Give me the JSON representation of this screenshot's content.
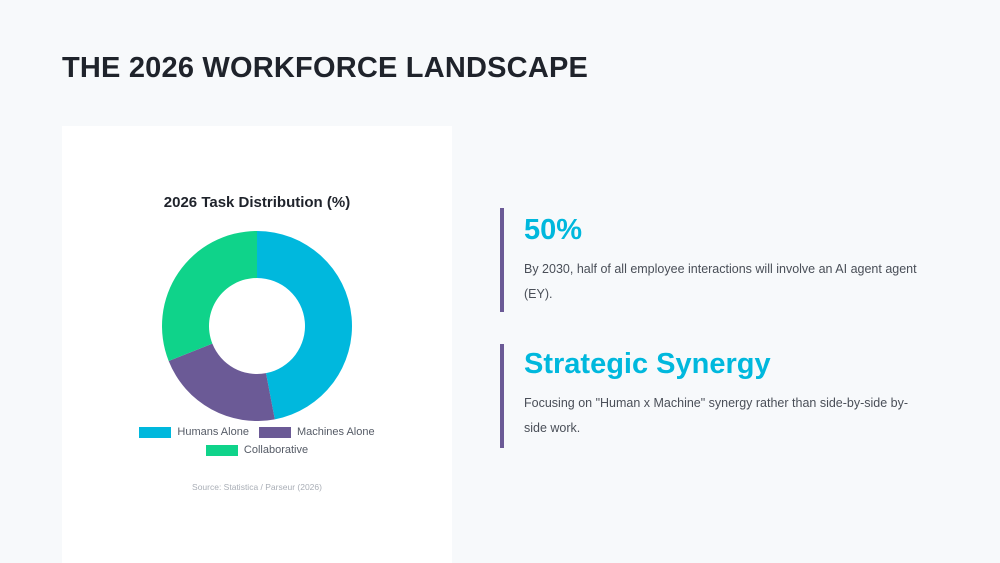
{
  "slide": {
    "title": "THE 2026 WORKFORCE LANDSCAPE"
  },
  "chart_data": {
    "type": "pie",
    "title": "2026 Task Distribution (%)",
    "categories": [
      "Humans Alone",
      "Machines Alone",
      "Collaborative"
    ],
    "values": [
      47,
      22,
      31
    ],
    "colors": [
      "#00b8dd",
      "#6b5a96",
      "#0fd38a"
    ],
    "legend": "bottom",
    "source": "Source: Statistica / Parseur (2026)"
  },
  "stats": [
    {
      "headline": "50%",
      "body": "By 2030, half of all employee interactions will involve an AI agent agent (EY)."
    },
    {
      "headline": "Strategic Synergy",
      "body": "Focusing on \"Human x Machine\" synergy rather than side-by-side by-side work."
    }
  ],
  "colors": {
    "accent": "#00b8dd",
    "bar": "#6b5a96",
    "title": "#1f232b"
  }
}
